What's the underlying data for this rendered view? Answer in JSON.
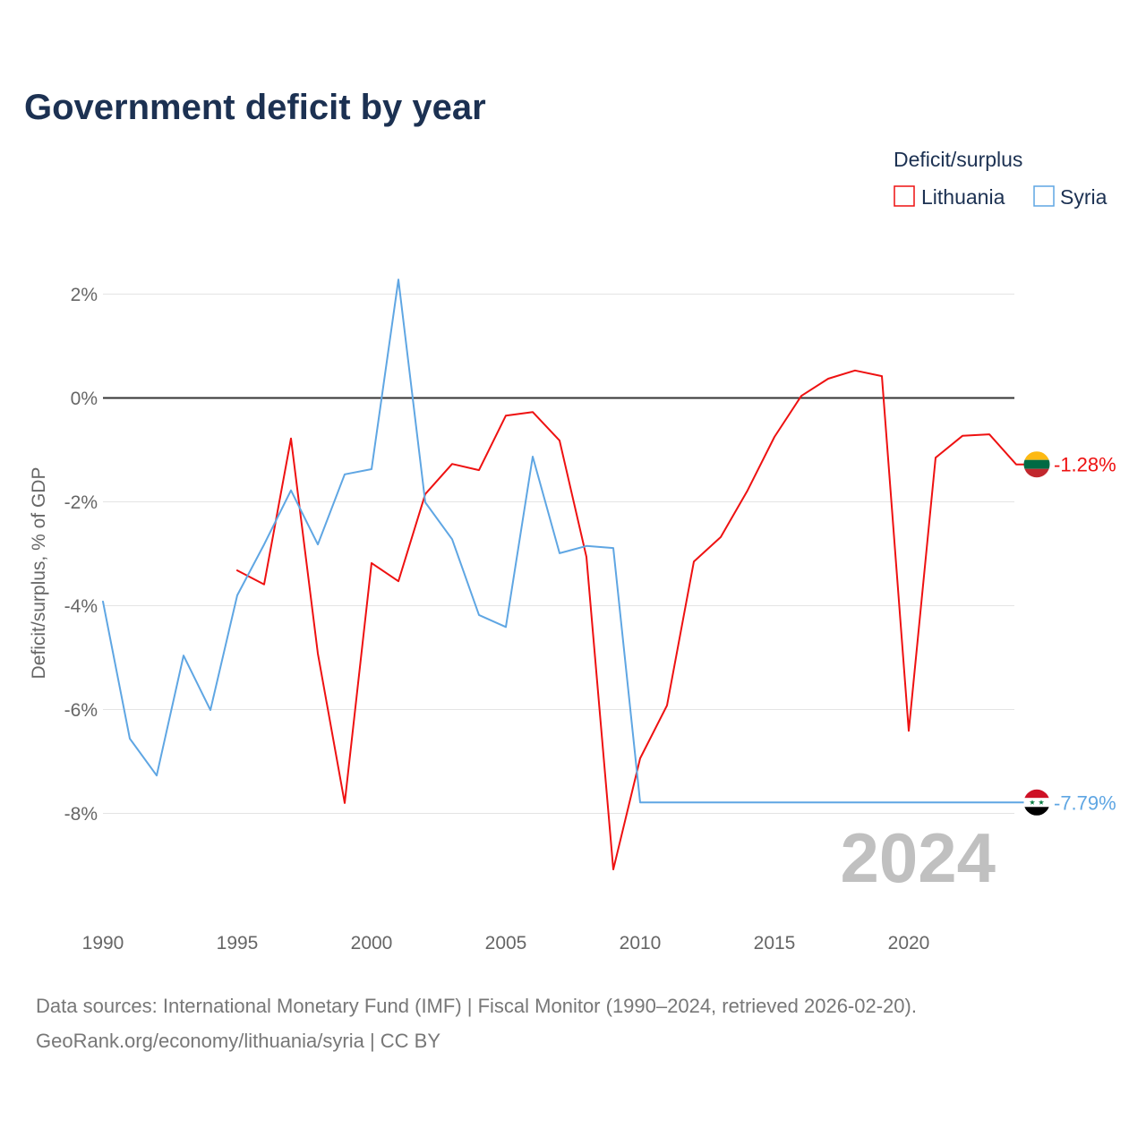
{
  "chart_data": {
    "type": "line",
    "title": "Government deficit by year",
    "xlabel": "",
    "ylabel": "Deficit/surplus, % of GDP",
    "legend_title": "Deficit/surplus",
    "legend_position": "top-right",
    "year_label": "2024",
    "grid": true,
    "zero_line": 0,
    "xlim": [
      1990,
      2024
    ],
    "ylim": [
      -10,
      2.5
    ],
    "x_ticks": [
      1990,
      1995,
      2000,
      2005,
      2010,
      2015,
      2020
    ],
    "x_tick_labels": [
      "1990",
      "1995",
      "2000",
      "2005",
      "2010",
      "2015",
      "2020"
    ],
    "y_ticks": [
      2,
      0,
      -2,
      -4,
      -6,
      -8
    ],
    "y_tick_labels": [
      "2%",
      "0%",
      "-2%",
      "-4%",
      "-6%",
      "-8%"
    ],
    "series": [
      {
        "name": "Lithuania",
        "color": "#ee1111",
        "flag_icon": "lithuania-flag-icon",
        "end_label": "-1.28%",
        "x": [
          1995,
          1996,
          1997,
          1998,
          1999,
          2000,
          2001,
          2002,
          2003,
          2004,
          2005,
          2006,
          2007,
          2008,
          2009,
          2010,
          2011,
          2012,
          2013,
          2014,
          2015,
          2016,
          2017,
          2018,
          2019,
          2020,
          2021,
          2022,
          2023,
          2024
        ],
        "values": [
          -3.32,
          -3.59,
          -0.78,
          -4.92,
          -7.8,
          -3.18,
          -3.53,
          -1.85,
          -1.27,
          -1.39,
          -0.34,
          -0.27,
          -0.82,
          -3.06,
          -9.08,
          -6.94,
          -5.92,
          -3.15,
          -2.68,
          -1.78,
          -0.75,
          0.04,
          0.37,
          0.53,
          0.42,
          -6.41,
          -1.15,
          -0.73,
          -0.7,
          -1.28
        ]
      },
      {
        "name": "Syria",
        "color": "#5fa6e3",
        "flag_icon": "syria-flag-icon",
        "end_label": "-7.79%",
        "x": [
          1990,
          1991,
          1992,
          1993,
          1994,
          1995,
          1996,
          1997,
          1998,
          1999,
          2000,
          2001,
          2002,
          2003,
          2004,
          2005,
          2006,
          2007,
          2008,
          2009,
          2010,
          2011,
          2012,
          2013,
          2014,
          2015,
          2016,
          2017,
          2018,
          2019,
          2020,
          2021,
          2022,
          2023,
          2024
        ],
        "values": [
          -3.92,
          -6.56,
          -7.27,
          -4.96,
          -6.01,
          -3.8,
          -2.82,
          -1.78,
          -2.82,
          -1.47,
          -1.37,
          2.28,
          -2.01,
          -2.72,
          -4.18,
          -4.41,
          -1.13,
          -2.99,
          -2.85,
          -2.89,
          -7.79,
          -7.79,
          -7.79,
          -7.79,
          -7.79,
          -7.79,
          -7.79,
          -7.79,
          -7.79,
          -7.79,
          -7.79,
          -7.79,
          -7.79,
          -7.79,
          -7.79
        ]
      }
    ]
  },
  "sources": {
    "line1": "Data sources: International Monetary Fund (IMF) | Fiscal Monitor (1990–2024, retrieved 2026-02-20).",
    "line2": "GeoRank.org/economy/lithuania/syria | CC BY"
  }
}
